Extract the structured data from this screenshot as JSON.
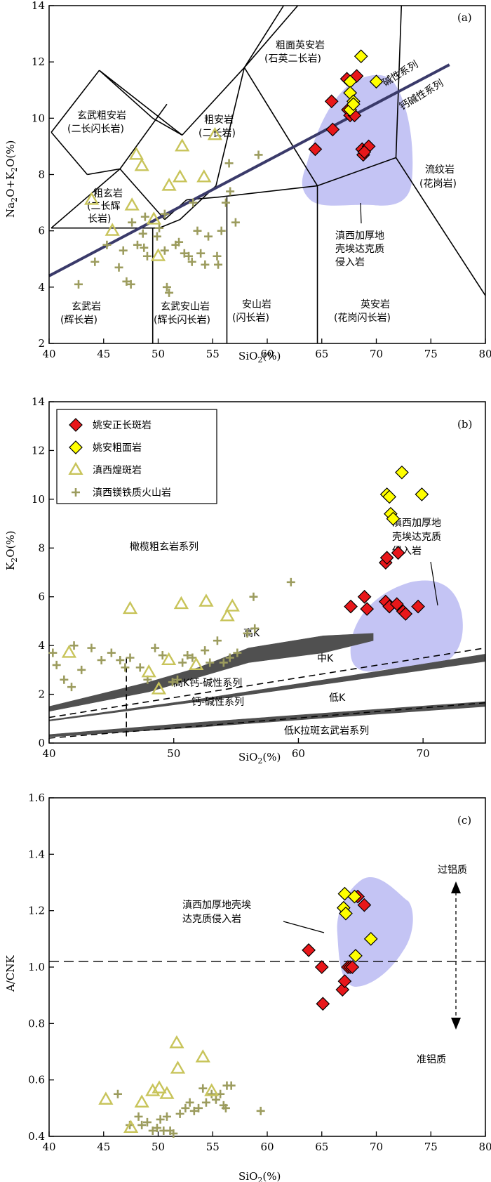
{
  "colors": {
    "zhengchang": "#e8171a",
    "cumianyan": "#ffff00",
    "huangban": "#c8c45a",
    "magnesian": "#9c9c5e",
    "adakite_field": "#c4c4f4",
    "alkaline_line": "#3a3a6a",
    "band": "#505050"
  },
  "legend": {
    "items": [
      {
        "key": "zhengchang",
        "label": "姚安正长斑岩"
      },
      {
        "key": "cumianyan",
        "label": "姚安粗面岩"
      },
      {
        "key": "huangban",
        "label": "滇西煌斑岩"
      },
      {
        "key": "magnesian",
        "label": "滇西镁铁质火山岩"
      }
    ]
  },
  "chart_data": [
    {
      "panel": "(a)",
      "type": "scatter",
      "xlabel_main": "SiO",
      "xlabel_sub": "2",
      "xlabel_tail": "(%)",
      "ylabel_parts": [
        "Na",
        "2",
        "O+K",
        "2",
        "O(%)"
      ],
      "xlim": [
        40,
        80
      ],
      "ylim": [
        2,
        14
      ],
      "xticks": [
        40,
        45,
        50,
        55,
        60,
        65,
        70,
        75,
        80
      ],
      "yticks": [
        2,
        4,
        6,
        8,
        10,
        12,
        14
      ],
      "tas_fields": [
        {
          "line1": "粗面英安岩",
          "line2": "(石英二长岩)"
        },
        {
          "line1": "玄武粗安岩",
          "line2": "(二长闪长岩)"
        },
        {
          "line1": "粗安岩",
          "line2": "(二长岩)"
        },
        {
          "line1": "粗玄岩",
          "line2": "(二长辉",
          "line3": "长岩)"
        },
        {
          "line1": "流纹岩",
          "line2": "(花岗岩)"
        },
        {
          "line1": "玄武岩",
          "line2": "(辉长岩)"
        },
        {
          "line1": "玄武安山岩",
          "line2": "(辉长闪长岩)"
        },
        {
          "line1": "安山岩",
          "line2": "(闪长岩)"
        },
        {
          "line1": "英安岩",
          "line2": "(花岗闪长岩)"
        }
      ],
      "series_labels": {
        "alkaline": "碱性系列",
        "calcalkaline": "钙碱性系列"
      },
      "field_label": [
        "滇西加厚地",
        "壳埃达克质",
        "侵入岩"
      ],
      "series": [
        {
          "key": "zhengchang",
          "points": [
            [
              65.9,
              10.6
            ],
            [
              67.3,
              11.4
            ],
            [
              67.6,
              10.9
            ],
            [
              68.2,
              11.5
            ],
            [
              67.4,
              10.3
            ],
            [
              67.6,
              10.1
            ],
            [
              68.0,
              10.1
            ],
            [
              66.0,
              9.6
            ],
            [
              64.4,
              8.9
            ],
            [
              68.7,
              8.9
            ],
            [
              68.8,
              8.7
            ],
            [
              69.3,
              9.0
            ],
            [
              68.9,
              8.8
            ]
          ]
        },
        {
          "key": "cumianyan",
          "points": [
            [
              68.6,
              12.2
            ],
            [
              70.0,
              11.3
            ],
            [
              67.6,
              11.3
            ],
            [
              67.6,
              10.9
            ],
            [
              67.9,
              10.6
            ],
            [
              67.6,
              10.3
            ],
            [
              67.9,
              10.5
            ]
          ]
        },
        {
          "key": "huangban",
          "points": [
            [
              43.9,
              7.1
            ],
            [
              45.8,
              6.0
            ],
            [
              47.6,
              6.9
            ],
            [
              48.0,
              8.7
            ],
            [
              48.5,
              8.3
            ],
            [
              49.6,
              6.4
            ],
            [
              50.0,
              5.1
            ],
            [
              51.0,
              7.6
            ],
            [
              52.0,
              7.9
            ],
            [
              52.2,
              9.0
            ],
            [
              54.2,
              7.9
            ],
            [
              55.2,
              9.4
            ]
          ]
        },
        {
          "key": "magnesian",
          "points": [
            [
              42.7,
              4.1
            ],
            [
              44.2,
              4.9
            ],
            [
              45.3,
              5.5
            ],
            [
              46.4,
              4.7
            ],
            [
              46.8,
              5.3
            ],
            [
              47.1,
              4.2
            ],
            [
              47.5,
              4.1
            ],
            [
              47.6,
              6.3
            ],
            [
              48.1,
              5.5
            ],
            [
              48.6,
              5.9
            ],
            [
              48.7,
              5.4
            ],
            [
              48.8,
              6.5
            ],
            [
              49.0,
              5.1
            ],
            [
              49.9,
              5.8
            ],
            [
              50.1,
              6.1
            ],
            [
              50.6,
              6.6
            ],
            [
              50.6,
              5.3
            ],
            [
              50.8,
              4.0
            ],
            [
              51.0,
              3.8
            ],
            [
              51.6,
              5.5
            ],
            [
              51.9,
              5.6
            ],
            [
              52.4,
              5.2
            ],
            [
              52.8,
              5.1
            ],
            [
              53.1,
              4.9
            ],
            [
              53.2,
              7.0
            ],
            [
              53.6,
              6.0
            ],
            [
              53.9,
              5.2
            ],
            [
              54.3,
              4.8
            ],
            [
              54.6,
              5.8
            ],
            [
              55.4,
              5.1
            ],
            [
              55.5,
              4.8
            ],
            [
              55.8,
              6.0
            ],
            [
              56.2,
              7.0
            ],
            [
              56.6,
              7.4
            ],
            [
              56.5,
              8.4
            ],
            [
              57.1,
              6.3
            ],
            [
              59.2,
              8.7
            ]
          ]
        }
      ]
    },
    {
      "panel": "(b)",
      "type": "scatter",
      "xlabel_main": "SiO",
      "xlabel_sub": "2",
      "xlabel_tail": "(%)",
      "ylabel_parts": [
        "K",
        "2",
        "O(%)"
      ],
      "xlim": [
        40,
        75
      ],
      "ylim": [
        0,
        14
      ],
      "xticks": [
        50,
        60,
        70
      ],
      "xticks_extra": [
        40
      ],
      "yticks": [
        0,
        2,
        4,
        6,
        8,
        10,
        12,
        14
      ],
      "series_fields": [
        "橄榄粗玄岩系列",
        "高K",
        "高K钙-碱性系列",
        "中K",
        "钙-碱性系列",
        "低K",
        "低K拉斑玄武岩系列"
      ],
      "field_label": [
        "滇西加厚地",
        "壳埃达克质",
        "侵入岩"
      ],
      "series": [
        {
          "key": "zhengchang",
          "points": [
            [
              64.2,
              5.6
            ],
            [
              65.3,
              6.0
            ],
            [
              65.5,
              5.5
            ],
            [
              67.0,
              7.4
            ],
            [
              67.1,
              7.6
            ],
            [
              67.0,
              5.8
            ],
            [
              67.3,
              5.6
            ],
            [
              68.0,
              7.8
            ],
            [
              67.9,
              5.7
            ],
            [
              68.4,
              5.4
            ],
            [
              68.6,
              5.3
            ],
            [
              69.6,
              5.6
            ]
          ]
        },
        {
          "key": "cumianyan",
          "points": [
            [
              68.3,
              11.1
            ],
            [
              67.1,
              10.2
            ],
            [
              67.3,
              10.1
            ],
            [
              69.9,
              10.2
            ],
            [
              67.4,
              9.4
            ],
            [
              67.6,
              9.2
            ]
          ]
        },
        {
          "key": "huangban",
          "points": [
            [
              41.6,
              3.7
            ],
            [
              46.5,
              5.5
            ],
            [
              48.0,
              2.9
            ],
            [
              48.8,
              2.2
            ],
            [
              49.6,
              3.4
            ],
            [
              50.6,
              5.7
            ],
            [
              51.8,
              3.2
            ],
            [
              52.6,
              5.8
            ],
            [
              54.3,
              5.2
            ],
            [
              54.7,
              5.6
            ]
          ]
        },
        {
          "key": "magnesian",
          "points": [
            [
              40.3,
              3.7
            ],
            [
              40.6,
              3.2
            ],
            [
              41.2,
              2.6
            ],
            [
              41.8,
              2.3
            ],
            [
              42.0,
              4.0
            ],
            [
              42.6,
              3.0
            ],
            [
              43.4,
              3.9
            ],
            [
              44.2,
              3.4
            ],
            [
              45.0,
              3.7
            ],
            [
              45.7,
              3.4
            ],
            [
              46.1,
              3.1
            ],
            [
              46.5,
              3.5
            ],
            [
              47.3,
              3.1
            ],
            [
              47.9,
              2.6
            ],
            [
              48.5,
              3.9
            ],
            [
              49.1,
              3.6
            ],
            [
              49.9,
              2.5
            ],
            [
              50.3,
              2.6
            ],
            [
              50.7,
              3.3
            ],
            [
              51.1,
              3.6
            ],
            [
              51.5,
              3.5
            ],
            [
              52.5,
              3.8
            ],
            [
              52.9,
              3.3
            ],
            [
              53.5,
              4.2
            ],
            [
              54.0,
              3.3
            ],
            [
              54.5,
              3.5
            ],
            [
              55.1,
              3.7
            ],
            [
              55.9,
              4.5
            ],
            [
              56.5,
              4.7
            ],
            [
              56.4,
              6.0
            ],
            [
              59.4,
              6.6
            ]
          ]
        }
      ]
    },
    {
      "panel": "(c)",
      "type": "scatter",
      "xlabel_main": "SiO",
      "xlabel_sub": "2",
      "xlabel_tail": "(%)",
      "ylabel": "A/CNK",
      "xlim": [
        40,
        80
      ],
      "ylim": [
        0.4,
        1.6
      ],
      "xticks": [
        40,
        45,
        50,
        55,
        60,
        65,
        70,
        75,
        80
      ],
      "yticks": [
        0.4,
        0.6,
        0.8,
        1.0,
        1.2,
        1.4,
        1.6
      ],
      "reference_line": 1.02,
      "arrow_labels": {
        "up": "过铝质",
        "down": "准铝质"
      },
      "field_label": [
        "滇西加厚地壳埃",
        "达克质侵入岩"
      ],
      "series": [
        {
          "key": "zhengchang",
          "points": [
            [
              63.8,
              1.06
            ],
            [
              65.0,
              1.0
            ],
            [
              66.9,
              0.92
            ],
            [
              67.1,
              0.95
            ],
            [
              67.4,
              1.0
            ],
            [
              67.6,
              1.0
            ],
            [
              67.8,
              1.0
            ],
            [
              68.3,
              1.25
            ],
            [
              68.9,
              1.22
            ],
            [
              65.1,
              0.87
            ]
          ]
        },
        {
          "key": "cumianyan",
          "points": [
            [
              67.1,
              1.26
            ],
            [
              67.0,
              1.21
            ],
            [
              67.2,
              1.19
            ],
            [
              68.0,
              1.25
            ],
            [
              69.5,
              1.1
            ],
            [
              68.1,
              1.04
            ]
          ]
        },
        {
          "key": "huangban",
          "points": [
            [
              45.2,
              0.53
            ],
            [
              47.5,
              0.43
            ],
            [
              48.5,
              0.52
            ],
            [
              49.5,
              0.56
            ],
            [
              50.1,
              0.57
            ],
            [
              50.8,
              0.55
            ],
            [
              51.7,
              0.73
            ],
            [
              51.8,
              0.64
            ],
            [
              54.1,
              0.68
            ],
            [
              54.9,
              0.56
            ]
          ]
        },
        {
          "key": "magnesian",
          "points": [
            [
              46.3,
              0.55
            ],
            [
              47.4,
              0.44
            ],
            [
              48.2,
              0.47
            ],
            [
              48.5,
              0.44
            ],
            [
              49.0,
              0.45
            ],
            [
              49.5,
              0.42
            ],
            [
              49.9,
              0.43
            ],
            [
              50.2,
              0.46
            ],
            [
              50.5,
              0.42
            ],
            [
              50.8,
              0.47
            ],
            [
              51.1,
              0.42
            ],
            [
              51.4,
              0.41
            ],
            [
              52.0,
              0.48
            ],
            [
              52.5,
              0.5
            ],
            [
              52.9,
              0.52
            ],
            [
              53.3,
              0.49
            ],
            [
              53.7,
              0.5
            ],
            [
              54.1,
              0.57
            ],
            [
              54.4,
              0.52
            ],
            [
              54.9,
              0.55
            ],
            [
              55.3,
              0.53
            ],
            [
              55.7,
              0.55
            ],
            [
              56.0,
              0.51
            ],
            [
              56.3,
              0.58
            ],
            [
              56.7,
              0.58
            ],
            [
              56.2,
              0.5
            ],
            [
              59.4,
              0.49
            ]
          ]
        }
      ]
    }
  ]
}
